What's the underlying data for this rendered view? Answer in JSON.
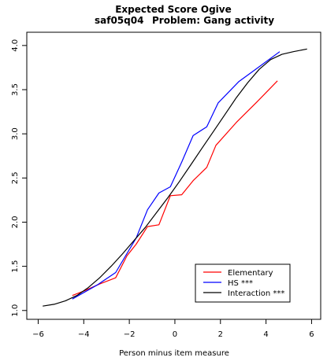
{
  "chart_data": {
    "type": "line",
    "title": "Expected Score Ogive",
    "subtitle_left": "saf05q04",
    "subtitle_right": "Problem: Gang activity",
    "xlabel": "Person minus item measure",
    "ylabel": "",
    "xlim": [
      -6.5,
      6.4
    ],
    "ylim": [
      0.9,
      4.15
    ],
    "x_ticks": [
      -6,
      -4,
      -2,
      0,
      2,
      4,
      6
    ],
    "y_ticks": [
      1.0,
      1.5,
      2.0,
      2.5,
      3.0,
      3.5,
      4.0
    ],
    "x_tick_labels": [
      "−6",
      "−4",
      "−2",
      "0",
      "2",
      "4",
      "6"
    ],
    "y_tick_labels": [
      "1.0",
      "1.5",
      "2.0",
      "2.5",
      "3.0",
      "3.5",
      "4.0"
    ],
    "grid": false,
    "legend_position": "bottom-right",
    "series": [
      {
        "name": "Elementary",
        "color": "#ff0000",
        "x": [
          -4.5,
          -4.0,
          -3.3,
          -2.6,
          -2.1,
          -1.7,
          -1.2,
          -0.7,
          -0.2,
          0.3,
          0.8,
          1.4,
          1.8,
          2.7,
          3.6,
          4.5
        ],
        "y": [
          1.17,
          1.22,
          1.3,
          1.37,
          1.62,
          1.75,
          1.95,
          1.97,
          2.3,
          2.31,
          2.47,
          2.62,
          2.87,
          3.13,
          3.36,
          3.6
        ]
      },
      {
        "name": "HS ***",
        "color": "#0000ff",
        "x": [
          -4.5,
          -3.4,
          -2.6,
          -1.7,
          -1.2,
          -0.7,
          -0.2,
          0.3,
          0.8,
          1.4,
          1.9,
          2.8,
          3.6,
          4.6
        ],
        "y": [
          1.13,
          1.29,
          1.43,
          1.82,
          2.14,
          2.33,
          2.4,
          2.68,
          2.98,
          3.08,
          3.35,
          3.59,
          3.74,
          3.93
        ]
      },
      {
        "name": "Interaction ***",
        "color": "#000000",
        "x": [
          -5.8,
          -5.3,
          -4.8,
          -4.3,
          -3.8,
          -3.3,
          -2.8,
          -2.3,
          -1.8,
          -1.3,
          -0.8,
          -0.3,
          0.2,
          0.7,
          1.2,
          1.7,
          2.2,
          2.7,
          3.2,
          3.7,
          4.2,
          4.7,
          5.2,
          5.8
        ],
        "y": [
          1.05,
          1.07,
          1.11,
          1.17,
          1.26,
          1.37,
          1.5,
          1.64,
          1.79,
          1.94,
          2.11,
          2.28,
          2.46,
          2.65,
          2.84,
          3.03,
          3.22,
          3.41,
          3.58,
          3.73,
          3.84,
          3.9,
          3.93,
          3.96
        ]
      }
    ]
  }
}
